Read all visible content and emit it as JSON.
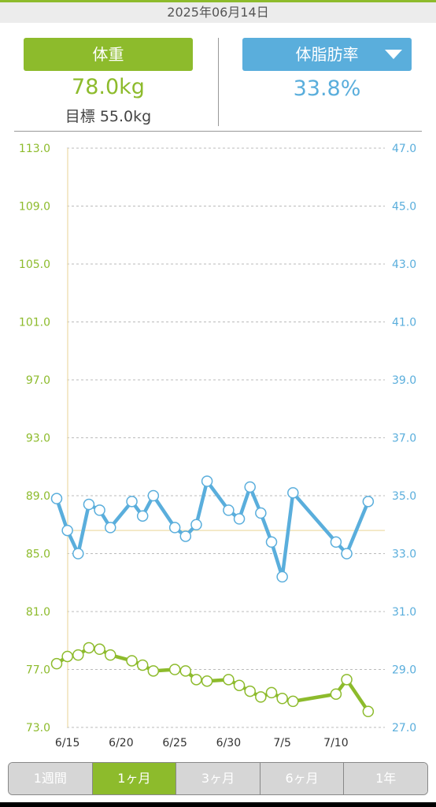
{
  "header": {
    "date": "2025年06月14日"
  },
  "metrics": {
    "weight_label": "体重",
    "weight_value": "78.0kg",
    "goal": "目標 55.0kg",
    "fat_label": "体脂肪率",
    "fat_value": "33.8%",
    "fat_dropdown_icon": "caret-down-icon"
  },
  "colors": {
    "weight": "#8dbb2c",
    "fat": "#5aaedc",
    "guide": "#f0e2b8",
    "grid": "#bbbbbb"
  },
  "chart_data": {
    "type": "line",
    "x": [
      "6/14",
      "6/15",
      "6/16",
      "6/17",
      "6/18",
      "6/19",
      "6/20",
      "6/21",
      "6/22",
      "6/23",
      "6/24",
      "6/25",
      "6/26",
      "6/27",
      "6/28",
      "6/29",
      "6/30",
      "7/1",
      "7/2",
      "7/3",
      "7/4",
      "7/5",
      "7/6",
      "7/7",
      "7/8",
      "7/9",
      "7/10",
      "7/11",
      "7/12",
      "7/13"
    ],
    "xtick_labels": [
      "6/15",
      "6/20",
      "6/25",
      "6/30",
      "7/5",
      "7/10"
    ],
    "ylim_left": [
      73.0,
      113.0
    ],
    "yticks_left": [
      "113.0",
      "109.0",
      "105.0",
      "101.0",
      "97.0",
      "93.0",
      "89.0",
      "85.0",
      "81.0",
      "77.0",
      "73.0"
    ],
    "ylim_right": [
      27.0,
      47.0
    ],
    "yticks_right": [
      "47.0",
      "45.0",
      "43.0",
      "41.0",
      "39.0",
      "37.0",
      "35.0",
      "33.0",
      "31.0",
      "29.0",
      "27.0"
    ],
    "grid": true,
    "series": [
      {
        "axis": "left",
        "values": [
          77.4,
          77.9,
          78.0,
          78.5,
          78.4,
          78.0,
          null,
          77.6,
          77.3,
          76.9,
          null,
          77.0,
          76.9,
          76.3,
          76.2,
          null,
          76.3,
          75.9,
          75.5,
          75.1,
          75.4,
          75.0,
          74.8,
          null,
          null,
          null,
          75.3,
          76.3,
          null,
          74.1
        ]
      },
      {
        "axis": "right",
        "values": [
          34.9,
          33.8,
          33.0,
          34.7,
          34.5,
          33.9,
          null,
          34.8,
          34.3,
          35.0,
          null,
          33.9,
          33.6,
          34.0,
          35.5,
          null,
          34.5,
          34.2,
          35.3,
          34.4,
          33.4,
          32.2,
          35.1,
          null,
          null,
          null,
          33.4,
          33.0,
          null,
          34.8
        ]
      }
    ],
    "reference_line_right": 33.8
  },
  "ranges": [
    "1週間",
    "1ヶ月",
    "3ヶ月",
    "6ヶ月",
    "1年"
  ],
  "active_range": 1
}
